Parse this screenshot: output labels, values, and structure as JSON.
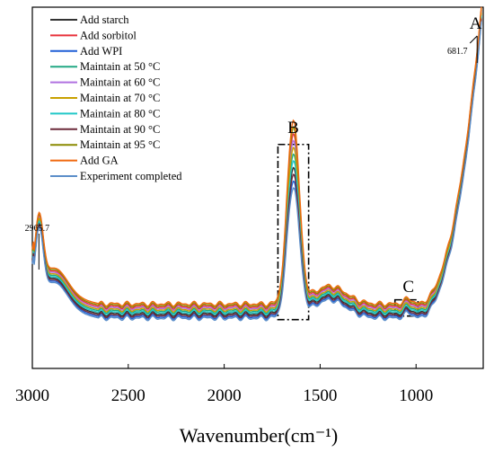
{
  "chart_data": {
    "type": "line",
    "title": "",
    "xlabel": "Wavenumber(cm⁻¹)",
    "ylabel": "",
    "xlim": [
      3000,
      650
    ],
    "x_reversed": true,
    "y_axis_ticks_shown": false,
    "x_ticks": [
      3000,
      2500,
      2000,
      1500,
      1000
    ],
    "grid": false,
    "legend_position": "top-left",
    "series": [
      {
        "name": "Add starch",
        "color": "#333333",
        "offset": -1
      },
      {
        "name": "Add sorbitol",
        "color": "#e8303a",
        "offset": 4
      },
      {
        "name": "Add  WPI",
        "color": "#1f5fd6",
        "offset": -3
      },
      {
        "name": "Maintain at 50 °C",
        "color": "#22a884",
        "offset": 1
      },
      {
        "name": "Maintain at 60 °C",
        "color": "#b070e0",
        "offset": 3
      },
      {
        "name": "Maintain at 70 °C",
        "color": "#c8a000",
        "offset": 2
      },
      {
        "name": "Maintain at 80 °C",
        "color": "#20c8c8",
        "offset": 0
      },
      {
        "name": "Maintain at 90 °C",
        "color": "#6b2a3a",
        "offset": -2
      },
      {
        "name": "Maintain at 95 °C",
        "color": "#8a8a00",
        "offset": 5
      },
      {
        "name": "Add GA",
        "color": "#f06a10",
        "offset": 6
      },
      {
        "name": "Experiment completed",
        "color": "#5b8ec9",
        "offset": -4
      }
    ],
    "annotations": [
      {
        "label": "A",
        "x": 680
      },
      {
        "label": "681.7",
        "x": 681.7
      },
      {
        "label": "B",
        "x": 1640
      },
      {
        "label": "C",
        "x": 1040
      },
      {
        "label": "2965.7",
        "x": 2965.7
      }
    ],
    "regions": [
      {
        "label": "B",
        "x_from": 1720,
        "x_to": 1560
      },
      {
        "label": "C",
        "x_from": 1110,
        "x_to": 990
      }
    ]
  }
}
